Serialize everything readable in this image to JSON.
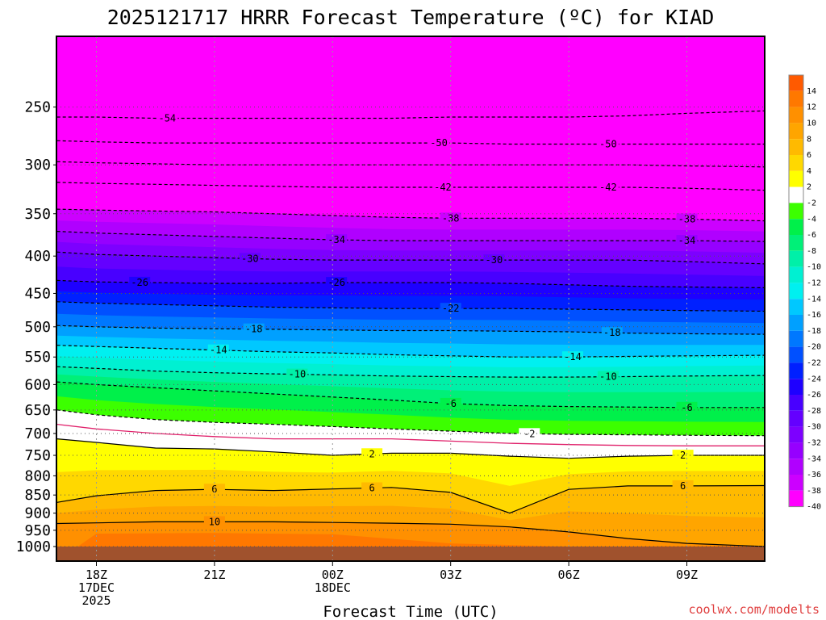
{
  "chart_data": {
    "type": "heatmap",
    "title": "2025121717 HRRR Forecast Temperature (ºC) for KIAD",
    "xlabel": "Forecast Time (UTC)",
    "ylabel": "",
    "credit": "coolwx.com/modelts",
    "x_ticks": [
      {
        "hour": 0,
        "lines": [
          "18Z",
          "17DEC",
          "2025"
        ]
      },
      {
        "hour": 3,
        "lines": [
          "21Z"
        ]
      },
      {
        "hour": 6,
        "lines": [
          "00Z",
          "18DEC"
        ]
      },
      {
        "hour": 9,
        "lines": [
          "03Z"
        ]
      },
      {
        "hour": 12,
        "lines": [
          "06Z"
        ]
      },
      {
        "hour": 15,
        "lines": [
          "09Z"
        ]
      }
    ],
    "x_range_hours": [
      -1,
      17
    ],
    "y_ticks": [
      "250",
      "300",
      "350",
      "400",
      "450",
      "500",
      "550",
      "600",
      "650",
      "700",
      "750",
      "800",
      "850",
      "900",
      "950",
      "1000"
    ],
    "y_range_hpa": [
      200,
      1000
    ],
    "y_scale": "log-pressure",
    "grid": "dotted",
    "colorbar": {
      "placement": "right",
      "levels": [
        14,
        12,
        10,
        8,
        6,
        4,
        2,
        -2,
        -4,
        -6,
        -8,
        -10,
        -12,
        -14,
        -16,
        -18,
        -20,
        -22,
        -24,
        -26,
        -28,
        -30,
        -32,
        -34,
        -36,
        -38,
        -40
      ],
      "colors": [
        "#ff5a00",
        "#ff7800",
        "#ff9000",
        "#ffa500",
        "#ffba00",
        "#ffd800",
        "#ffff00",
        "#ffffff",
        "#3cff00",
        "#00f04a",
        "#00f078",
        "#00f0a8",
        "#00f0d2",
        "#00f0f0",
        "#00c8ff",
        "#00a0ff",
        "#0078ff",
        "#0050ff",
        "#0020ff",
        "#1e00ff",
        "#4800ff",
        "#6400ff",
        "#7d00ff",
        "#9600ff",
        "#b000ff",
        "#cc00ff",
        "#ff00ff"
      ]
    },
    "ground_color": "#a0522d",
    "contours": [
      {
        "value": -54,
        "pressures": [
          258,
          258,
          259,
          259,
          259,
          259,
          259,
          258,
          258,
          258,
          257,
          255,
          253
        ],
        "label_hours": [
          1.8
        ]
      },
      {
        "value": -50,
        "pressures": [
          278,
          279,
          280,
          280,
          280,
          280,
          280,
          280,
          281,
          281,
          281,
          281,
          281
        ],
        "label_hours": [
          8.7,
          13.0
        ]
      },
      {
        "value": -46,
        "pressures": [
          297,
          298,
          299,
          300,
          300,
          300,
          300,
          300,
          300,
          300,
          300,
          301,
          302
        ],
        "label_hours": []
      },
      {
        "value": -42,
        "pressures": [
          317,
          318,
          319,
          320,
          321,
          322,
          322,
          322,
          322,
          322,
          322,
          323,
          325
        ],
        "label_hours": [
          8.8,
          13.0
        ]
      },
      {
        "value": -38,
        "pressures": [
          345,
          346,
          347,
          348,
          350,
          352,
          354,
          355,
          355,
          355,
          355,
          356,
          358
        ],
        "label_hours": [
          9.0,
          15.0
        ]
      },
      {
        "value": -34,
        "pressures": [
          370,
          372,
          374,
          376,
          378,
          380,
          381,
          381,
          381,
          381,
          381,
          381,
          382
        ],
        "label_hours": [
          6.1,
          15.0
        ]
      },
      {
        "value": -30,
        "pressures": [
          395,
          398,
          400,
          402,
          404,
          405,
          405,
          405,
          405,
          405,
          405,
          407,
          410
        ],
        "label_hours": [
          3.9,
          10.1
        ]
      },
      {
        "value": -26,
        "pressures": [
          432,
          434,
          435,
          436,
          436,
          435,
          435,
          435,
          436,
          438,
          440,
          441,
          442
        ],
        "label_hours": [
          1.1,
          6.1
        ]
      },
      {
        "value": -22,
        "pressures": [
          462,
          464,
          466,
          468,
          470,
          471,
          472,
          472,
          472,
          473,
          474,
          475,
          476
        ],
        "label_hours": [
          9.0
        ]
      },
      {
        "value": -18,
        "pressures": [
          498,
          500,
          502,
          503,
          504,
          505,
          506,
          506,
          507,
          508,
          510,
          511,
          512
        ],
        "label_hours": [
          4.0,
          13.1
        ]
      },
      {
        "value": -14,
        "pressures": [
          530,
          532,
          535,
          538,
          541,
          543,
          546,
          548,
          550,
          550,
          549,
          548,
          547
        ],
        "label_hours": [
          3.1,
          12.1
        ]
      },
      {
        "value": -10,
        "pressures": [
          567,
          570,
          575,
          578,
          580,
          582,
          584,
          585,
          586,
          586,
          585,
          584,
          583
        ],
        "label_hours": [
          5.1,
          13.0
        ]
      },
      {
        "value": -6,
        "pressures": [
          595,
          600,
          606,
          612,
          618,
          624,
          630,
          637,
          641,
          643,
          644,
          645,
          645
        ],
        "label_hours": [
          9.0,
          15.0
        ]
      },
      {
        "value": -2,
        "pressures": [
          650,
          660,
          670,
          676,
          680,
          685,
          690,
          695,
          700,
          702,
          703,
          704,
          705
        ],
        "label_hours": [
          11.0
        ]
      }
    ],
    "freezing_line": {
      "value": 0,
      "pressures": [
        680,
        690,
        700,
        707,
        712,
        712,
        712,
        717,
        722,
        725,
        727,
        728,
        728
      ]
    },
    "warm_contours": [
      {
        "value": 2,
        "pressures": [
          712,
          720,
          733,
          735,
          742,
          750,
          745,
          745,
          752,
          757,
          752,
          750,
          750
        ],
        "label_hours": [
          7.0,
          14.9
        ]
      },
      {
        "value": 6,
        "pressures": [
          870,
          852,
          838,
          835,
          838,
          834,
          830,
          843,
          900,
          835,
          826,
          826,
          825
        ],
        "label_hours": [
          3.0,
          7.0,
          14.9
        ]
      },
      {
        "value": 10,
        "pressures": [
          930,
          928,
          925,
          925,
          925,
          927,
          929,
          932,
          940,
          955,
          975,
          990,
          1000
        ],
        "label_hours": [
          3.0
        ]
      }
    ]
  }
}
